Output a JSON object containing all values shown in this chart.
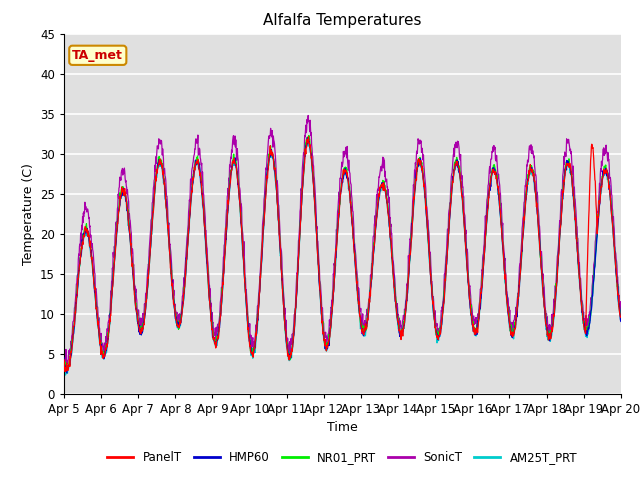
{
  "title": "Alfalfa Temperatures",
  "xlabel": "Time",
  "ylabel": "Temperature (C)",
  "ylim": [
    0,
    45
  ],
  "xlim": [
    0,
    15
  ],
  "annotation_text": "TA_met",
  "annotation_bg": "#ffffcc",
  "annotation_border": "#cc8800",
  "annotation_text_color": "#cc0000",
  "series_order": [
    "AM25T_PRT",
    "SonicT",
    "NR01_PRT",
    "HMP60",
    "PanelT"
  ],
  "colors": {
    "PanelT": "#ff0000",
    "HMP60": "#0000cc",
    "NR01_PRT": "#00ee00",
    "SonicT": "#aa00aa",
    "AM25T_PRT": "#00cccc"
  },
  "xtick_labels": [
    "Apr 5",
    "Apr 6",
    "Apr 7",
    "Apr 8",
    "Apr 9",
    "Apr 10",
    "Apr 11",
    "Apr 12",
    "Apr 13",
    "Apr 14",
    "Apr 15",
    "Apr 16",
    "Apr 17",
    "Apr 18",
    "Apr 19",
    "Apr 20"
  ],
  "xtick_positions": [
    0,
    1,
    2,
    3,
    4,
    5,
    6,
    7,
    8,
    9,
    10,
    11,
    12,
    13,
    14,
    15
  ],
  "ytick_positions": [
    0,
    5,
    10,
    15,
    20,
    25,
    30,
    35,
    40,
    45
  ],
  "figsize": [
    6.4,
    4.8
  ],
  "dpi": 100
}
